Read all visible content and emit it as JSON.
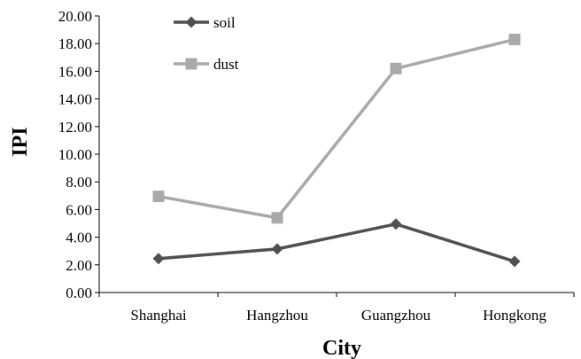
{
  "chart_data": {
    "type": "line",
    "categories": [
      "Shanghai",
      "Hangzhou",
      "Guangzhou",
      "Hongkong"
    ],
    "series": [
      {
        "name": "soil",
        "values": [
          2.45,
          3.15,
          4.95,
          2.25
        ],
        "color": "#505050",
        "marker": "diamond"
      },
      {
        "name": "dust",
        "values": [
          6.95,
          5.4,
          16.2,
          18.3
        ],
        "color": "#a9a9a9",
        "marker": "square"
      }
    ],
    "xlabel": "City",
    "ylabel": "IPI",
    "ylim": [
      0,
      20
    ],
    "yticks": [
      "0.00",
      "2.00",
      "4.00",
      "6.00",
      "8.00",
      "10.00",
      "12.00",
      "14.00",
      "16.00",
      "18.00",
      "20.00"
    ],
    "grid": false,
    "legend_position": "top-left"
  }
}
